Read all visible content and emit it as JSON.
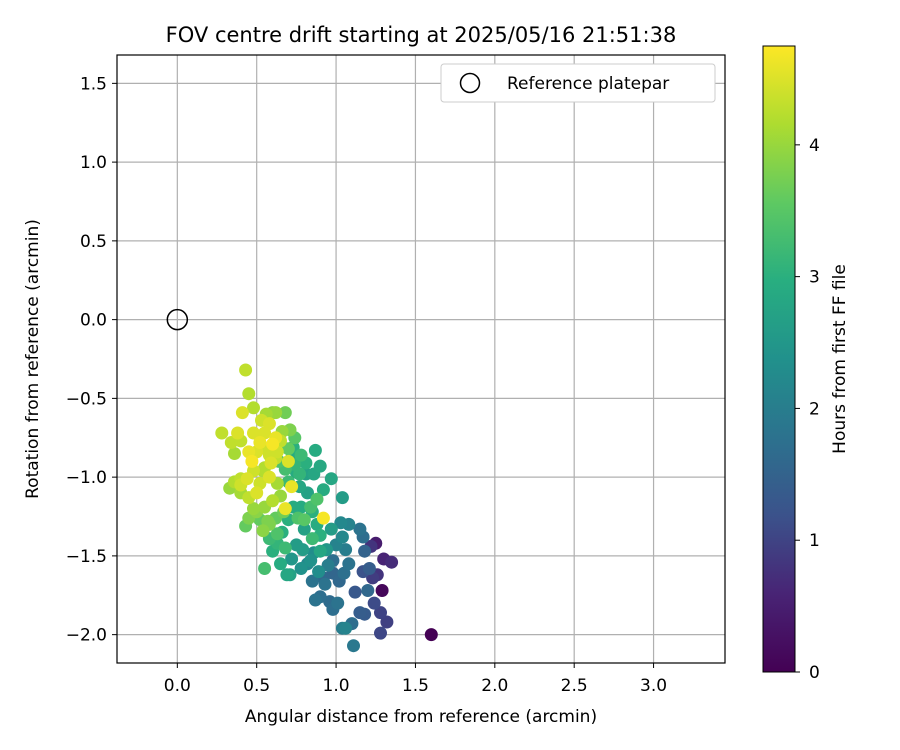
{
  "chart_data": {
    "type": "scatter",
    "title": "FOV centre drift starting at 2025/05/16 21:51:38",
    "xlabel": "Angular distance from reference (arcmin)",
    "ylabel": "Rotation from reference (arcmin)",
    "xlim": [
      -0.38,
      3.45
    ],
    "ylim": [
      -2.18,
      1.68
    ],
    "xticks": [
      "0.0",
      "0.5",
      "1.0",
      "1.5",
      "2.0",
      "2.5",
      "3.0"
    ],
    "yticks": [
      "1.5",
      "1.0",
      "0.5",
      "0.0",
      "−0.5",
      "−1.0",
      "−1.5",
      "−2.0"
    ],
    "grid": true,
    "legend_position": "top-right",
    "reference": {
      "label": "Reference platepar",
      "x": 0.0,
      "y": 0.0
    },
    "colorbar": {
      "label": "Hours from first FF file",
      "range": [
        0,
        4.75
      ],
      "ticks": [
        "0",
        "1",
        "2",
        "3",
        "4"
      ],
      "colormap": "viridis"
    },
    "points": [
      [
        1.6,
        -2.0,
        0.0
      ],
      [
        1.29,
        -1.72,
        0.1
      ],
      [
        1.25,
        -1.42,
        0.45
      ],
      [
        1.3,
        -1.52,
        0.6
      ],
      [
        1.35,
        -1.54,
        0.7
      ],
      [
        1.22,
        -1.44,
        0.8
      ],
      [
        1.26,
        -1.62,
        0.8
      ],
      [
        1.23,
        -1.64,
        0.9
      ],
      [
        1.28,
        -1.86,
        1.0
      ],
      [
        1.32,
        -1.92,
        0.95
      ],
      [
        1.28,
        -1.99,
        1.05
      ],
      [
        1.24,
        -1.8,
        1.1
      ],
      [
        1.12,
        -1.73,
        1.3
      ],
      [
        1.17,
        -1.6,
        1.2
      ],
      [
        1.21,
        -1.58,
        1.4
      ],
      [
        1.18,
        -1.47,
        1.5
      ],
      [
        1.17,
        -1.38,
        1.7
      ],
      [
        1.15,
        -1.33,
        1.8
      ],
      [
        1.2,
        -1.72,
        1.6
      ],
      [
        1.18,
        -1.87,
        1.35
      ],
      [
        1.15,
        -1.86,
        1.4
      ],
      [
        1.1,
        -1.93,
        1.7
      ],
      [
        1.06,
        -1.96,
        2.1
      ],
      [
        1.04,
        -1.96,
        2.0
      ],
      [
        1.11,
        -2.07,
        1.9
      ],
      [
        1.01,
        -1.8,
        1.8
      ],
      [
        0.98,
        -1.84,
        1.7
      ],
      [
        0.96,
        -1.79,
        1.65
      ],
      [
        0.9,
        -1.76,
        1.7
      ],
      [
        0.87,
        -1.78,
        1.8
      ],
      [
        0.85,
        -1.66,
        1.8
      ],
      [
        0.92,
        -1.64,
        1.6
      ],
      [
        0.98,
        -1.61,
        1.55
      ],
      [
        1.02,
        -1.66,
        1.6
      ],
      [
        1.05,
        -1.61,
        1.75
      ],
      [
        1.08,
        -1.55,
        1.8
      ],
      [
        1.06,
        -1.46,
        2.0
      ],
      [
        1.04,
        -1.38,
        2.2
      ],
      [
        1.08,
        -1.3,
        2.1
      ],
      [
        1.03,
        -1.29,
        2.2
      ],
      [
        1.0,
        -1.43,
        2.1
      ],
      [
        0.98,
        -1.53,
        1.7
      ],
      [
        0.94,
        -1.46,
        2.5
      ],
      [
        0.97,
        -1.33,
        2.6
      ],
      [
        1.04,
        -1.13,
        2.6
      ],
      [
        0.97,
        -1.01,
        2.8
      ],
      [
        0.92,
        -1.08,
        2.9
      ],
      [
        0.87,
        -0.83,
        2.9
      ],
      [
        0.9,
        -0.93,
        2.85
      ],
      [
        0.86,
        -0.98,
        2.8
      ],
      [
        0.82,
        -1.1,
        2.7
      ],
      [
        0.78,
        -1.19,
        2.9
      ],
      [
        0.85,
        -1.22,
        3.0
      ],
      [
        0.88,
        -1.3,
        2.9
      ],
      [
        0.8,
        -1.33,
        2.7
      ],
      [
        0.75,
        -1.43,
        2.6
      ],
      [
        0.72,
        -1.52,
        2.5
      ],
      [
        0.78,
        -1.58,
        2.4
      ],
      [
        0.82,
        -1.55,
        2.2
      ],
      [
        0.86,
        -1.48,
        2.3
      ],
      [
        0.71,
        -1.62,
        2.7
      ],
      [
        0.69,
        -1.62,
        2.8
      ],
      [
        0.65,
        -1.55,
        2.9
      ],
      [
        0.6,
        -1.47,
        3.0
      ],
      [
        0.63,
        -1.42,
        3.1
      ],
      [
        0.55,
        -1.58,
        3.3
      ],
      [
        0.58,
        -1.39,
        3.2
      ],
      [
        0.66,
        -1.35,
        3.0
      ],
      [
        0.7,
        -1.27,
        3.0
      ],
      [
        0.73,
        -1.19,
        2.9
      ],
      [
        0.77,
        -1.06,
        2.8
      ],
      [
        0.81,
        -0.98,
        2.7
      ],
      [
        0.74,
        -0.92,
        3.1
      ],
      [
        0.68,
        -0.95,
        3.3
      ],
      [
        0.64,
        -0.9,
        3.4
      ],
      [
        0.7,
        -1.03,
        3.2
      ],
      [
        0.72,
        -0.88,
        2.9
      ],
      [
        0.73,
        -0.81,
        3.0
      ],
      [
        0.75,
        -0.97,
        2.9
      ],
      [
        0.68,
        -0.59,
        3.7
      ],
      [
        0.62,
        -0.59,
        4.0
      ],
      [
        0.6,
        -0.59,
        3.9
      ],
      [
        0.56,
        -0.6,
        4.1
      ],
      [
        0.45,
        -0.47,
        4.2
      ],
      [
        0.43,
        -0.32,
        4.3
      ],
      [
        0.48,
        -0.56,
        4.2
      ],
      [
        0.41,
        -0.59,
        4.5
      ],
      [
        0.53,
        -0.64,
        4.4
      ],
      [
        0.58,
        -0.66,
        4.5
      ],
      [
        0.48,
        -0.72,
        4.5
      ],
      [
        0.38,
        -0.72,
        4.5
      ],
      [
        0.28,
        -0.72,
        4.3
      ],
      [
        0.34,
        -0.78,
        4.3
      ],
      [
        0.36,
        -0.85,
        4.1
      ],
      [
        0.4,
        -0.77,
        4.3
      ],
      [
        0.45,
        -0.84,
        4.6
      ],
      [
        0.5,
        -0.84,
        4.5
      ],
      [
        0.52,
        -0.78,
        4.6
      ],
      [
        0.55,
        -0.72,
        4.5
      ],
      [
        0.62,
        -0.75,
        4.6
      ],
      [
        0.6,
        -0.79,
        4.7
      ],
      [
        0.63,
        -0.84,
        4.4
      ],
      [
        0.58,
        -0.86,
        4.4
      ],
      [
        0.62,
        -0.88,
        4.3
      ],
      [
        0.55,
        -0.94,
        4.2
      ],
      [
        0.48,
        -0.96,
        4.4
      ],
      [
        0.44,
        -1.01,
        4.5
      ],
      [
        0.4,
        -1.05,
        4.4
      ],
      [
        0.36,
        -1.03,
        4.2
      ],
      [
        0.33,
        -1.07,
        4.0
      ],
      [
        0.4,
        -1.1,
        4.1
      ],
      [
        0.45,
        -1.13,
        4.3
      ],
      [
        0.5,
        -1.1,
        4.5
      ],
      [
        0.52,
        -1.04,
        4.4
      ],
      [
        0.58,
        -1.0,
        4.5
      ],
      [
        0.63,
        -1.04,
        4.1
      ],
      [
        0.65,
        -1.12,
        4.0
      ],
      [
        0.6,
        -1.15,
        4.2
      ],
      [
        0.55,
        -1.19,
        4.0
      ],
      [
        0.5,
        -1.22,
        3.9
      ],
      [
        0.45,
        -1.26,
        3.8
      ],
      [
        0.52,
        -1.27,
        3.6
      ],
      [
        0.57,
        -1.28,
        3.8
      ],
      [
        0.62,
        -1.26,
        3.6
      ],
      [
        0.67,
        -1.22,
        3.7
      ],
      [
        0.72,
        -1.06,
        4.6
      ],
      [
        0.7,
        -0.9,
        4.5
      ],
      [
        0.68,
        -1.2,
        4.6
      ],
      [
        0.76,
        -1.26,
        3.4
      ],
      [
        0.8,
        -1.27,
        3.5
      ],
      [
        0.84,
        -1.19,
        3.3
      ],
      [
        0.88,
        -1.14,
        3.4
      ],
      [
        0.92,
        -1.26,
        4.7
      ],
      [
        0.85,
        -1.39,
        3.2
      ],
      [
        0.9,
        -1.37,
        3.0
      ],
      [
        0.9,
        -1.47,
        2.8
      ],
      [
        0.95,
        -1.56,
        2.0
      ],
      [
        0.93,
        -1.68,
        1.8
      ],
      [
        0.89,
        -1.6,
        2.3
      ],
      [
        0.84,
        -1.53,
        2.4
      ],
      [
        0.79,
        -1.46,
        2.6
      ],
      [
        0.68,
        -1.45,
        3.2
      ],
      [
        0.63,
        -1.36,
        3.4
      ],
      [
        0.58,
        -1.3,
        3.8
      ],
      [
        0.54,
        -1.34,
        3.9
      ],
      [
        0.43,
        -1.31,
        3.6
      ],
      [
        0.48,
        -1.2,
        4.0
      ],
      [
        0.4,
        -1.01,
        4.3
      ],
      [
        0.77,
        -0.98,
        3.1
      ],
      [
        0.81,
        -0.91,
        3.0
      ],
      [
        0.78,
        -0.86,
        3.2
      ],
      [
        0.74,
        -0.75,
        3.5
      ],
      [
        0.71,
        -0.7,
        3.8
      ],
      [
        0.66,
        -0.71,
        4.0
      ],
      [
        0.7,
        -0.82,
        3.6
      ],
      [
        0.65,
        -0.77,
        4.3
      ],
      [
        0.56,
        -0.82,
        4.4
      ],
      [
        0.59,
        -0.91,
        4.5
      ],
      [
        0.54,
        -0.96,
        4.2
      ],
      [
        0.47,
        -0.9,
        4.7
      ]
    ]
  }
}
